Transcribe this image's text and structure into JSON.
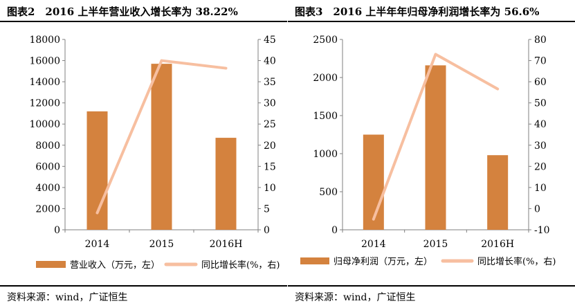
{
  "charts": [
    {
      "title": "图表2　2016 上半年营业收入增长率为 38.22%",
      "source": "资料来源：wind，广证恒生"
    },
    {
      "title": "图表3　2016 上半年年归母净利润增长率为 56.6%",
      "source": "资料来源：wind，广证恒生"
    }
  ],
  "colors": {
    "bar": "#D4823E",
    "line": "#F7BFA0",
    "axis": "#7f7f7f"
  },
  "chart_data": [
    {
      "type": "bar",
      "categories": [
        "2014",
        "2015",
        "2016H"
      ],
      "series": [
        {
          "name": "营业收入（万元，左）",
          "type": "bar",
          "axis": "left",
          "values": [
            11200,
            15700,
            8700
          ]
        },
        {
          "name": "同比增长率(%，右)",
          "type": "line",
          "axis": "right",
          "values": [
            4,
            40,
            38.2
          ]
        }
      ],
      "y_left": {
        "min": 0,
        "max": 18000,
        "ticks": [
          0,
          2000,
          4000,
          6000,
          8000,
          10000,
          12000,
          14000,
          16000,
          18000
        ]
      },
      "y_right": {
        "min": 0,
        "max": 45,
        "ticks": [
          0,
          5,
          10,
          15,
          20,
          25,
          30,
          35,
          40,
          45
        ]
      },
      "grid": false,
      "legend": "bottom"
    },
    {
      "type": "bar",
      "categories": [
        "2014",
        "2015",
        "2016H"
      ],
      "series": [
        {
          "name": "归母净利润（万元，左）",
          "type": "bar",
          "axis": "left",
          "values": [
            1250,
            2160,
            980
          ]
        },
        {
          "name": "同比增长率(%，右)",
          "type": "line",
          "axis": "right",
          "values": [
            -5,
            73,
            56.6
          ]
        }
      ],
      "y_left": {
        "min": 0,
        "max": 2500,
        "ticks": [
          0,
          500,
          1000,
          1500,
          2000,
          2500
        ]
      },
      "y_right": {
        "min": -10,
        "max": 80,
        "ticks": [
          -10,
          0,
          10,
          20,
          30,
          40,
          50,
          60,
          70,
          80
        ]
      },
      "grid": false,
      "legend": "bottom"
    }
  ]
}
